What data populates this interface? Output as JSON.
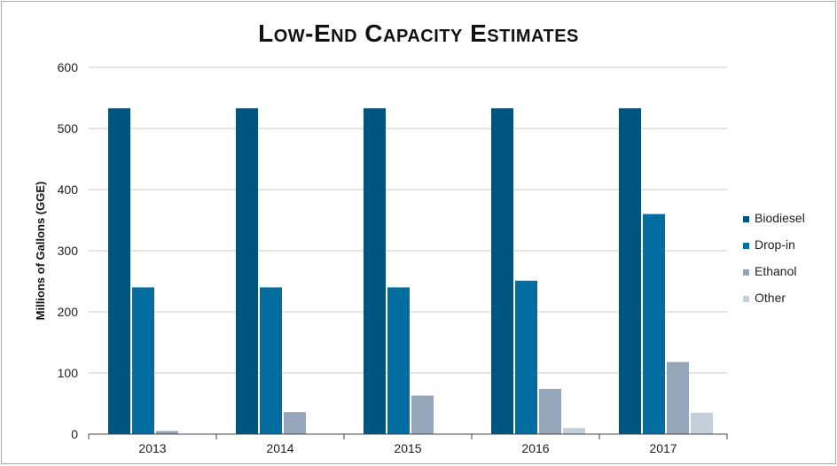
{
  "chart_data": {
    "type": "bar",
    "title": "Low-End Capacity Estimates",
    "xlabel": "",
    "ylabel": "Millions of Gallons (GGE)",
    "ylim": [
      0,
      600
    ],
    "yticks": [
      "0",
      "100",
      "200",
      "300",
      "400",
      "500",
      "600"
    ],
    "categories": [
      "2013",
      "2014",
      "2015",
      "2016",
      "2017"
    ],
    "series": [
      {
        "name": "Biodiesel",
        "color": "#00557f",
        "values": [
          533,
          533,
          533,
          533,
          533
        ]
      },
      {
        "name": "Drop-in",
        "color": "#006e9e",
        "values": [
          240,
          240,
          240,
          251,
          360
        ]
      },
      {
        "name": "Ethanol",
        "color": "#95a6ba",
        "values": [
          5,
          36,
          63,
          74,
          118
        ]
      },
      {
        "name": "Other",
        "color": "#c5cfda",
        "values": [
          0,
          0,
          0,
          10,
          35
        ]
      }
    ],
    "grid": true,
    "legend": "right"
  }
}
